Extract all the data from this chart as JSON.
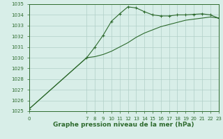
{
  "line1_x": [
    0,
    7,
    8,
    9,
    10,
    11,
    12,
    13,
    14,
    15,
    16,
    17,
    18,
    19,
    20,
    21,
    22,
    23
  ],
  "line1_y": [
    1025.2,
    1030.0,
    1031.0,
    1032.1,
    1033.4,
    1034.1,
    1034.75,
    1034.65,
    1034.3,
    1034.0,
    1033.9,
    1033.9,
    1034.0,
    1034.0,
    1034.05,
    1034.1,
    1034.0,
    1033.7
  ],
  "line2_x": [
    0,
    7,
    8,
    9,
    10,
    11,
    12,
    13,
    14,
    15,
    16,
    17,
    18,
    19,
    20,
    21,
    22,
    23
  ],
  "line2_y": [
    1025.2,
    1030.0,
    1030.1,
    1030.3,
    1030.6,
    1031.0,
    1031.4,
    1031.9,
    1032.3,
    1032.6,
    1032.9,
    1033.1,
    1033.3,
    1033.5,
    1033.6,
    1033.7,
    1033.8,
    1033.7
  ],
  "line_color": "#2d6a2d",
  "bg_color": "#d8eee8",
  "grid_color": "#b0cfc8",
  "ylim": [
    1025,
    1035
  ],
  "xlim": [
    0,
    23
  ],
  "yticks": [
    1025,
    1026,
    1027,
    1028,
    1029,
    1030,
    1031,
    1032,
    1033,
    1034,
    1035
  ],
  "xticks_labeled": [
    7,
    8,
    9,
    10,
    11,
    12,
    13,
    14,
    15,
    16,
    17,
    18,
    19,
    20,
    21,
    22,
    23
  ],
  "xtick_0": [
    0
  ],
  "xlabel": "Graphe pression niveau de la mer (hPa)",
  "tick_fontsize": 5.0,
  "label_fontsize": 6.5
}
